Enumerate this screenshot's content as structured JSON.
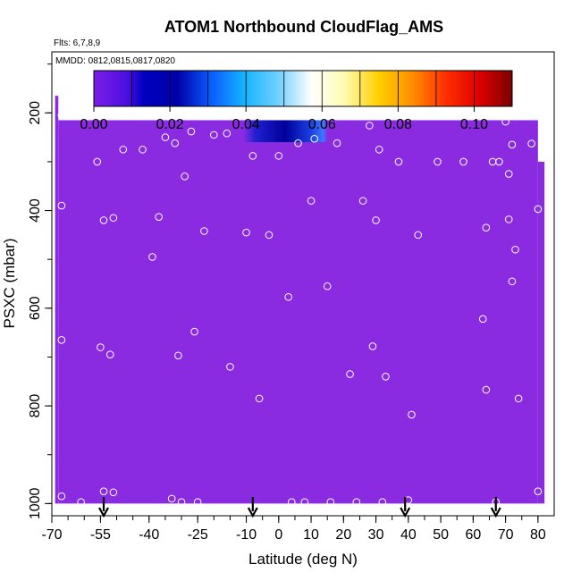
{
  "chart_data": {
    "type": "heatmap",
    "title": "ATOM1 Northbound CloudFlag_AMS",
    "annotations": {
      "flights": "Flts: 6,7,8,9",
      "dates": "MMDD: 0812,0815,0817,0820"
    },
    "xlabel": "Latitude (deg N)",
    "ylabel": "PSXC (mbar)",
    "xlim": [
      -70,
      85
    ],
    "ylim": [
      1025,
      75
    ],
    "x_ticks": [
      -70,
      -55,
      -40,
      -25,
      -10,
      0,
      10,
      20,
      30,
      40,
      50,
      60,
      70,
      80
    ],
    "x_tick_labels": [
      "-70",
      "-55",
      "-40",
      "-25",
      "-10",
      "0",
      "10",
      "20",
      "30",
      "40",
      "50",
      "60",
      "70",
      "80"
    ],
    "y_ticks": [
      200,
      400,
      600,
      800,
      1000
    ],
    "y_tick_labels": [
      "200",
      "400",
      "600",
      "800",
      "1000"
    ],
    "colorbar": {
      "range": [
        0,
        0.11
      ],
      "ticks": [
        0,
        0.02,
        0.04,
        0.06,
        0.08,
        0.1
      ],
      "tick_labels": [
        "0.00",
        "0.02",
        "0.04",
        "0.06",
        "0.08",
        "0.10"
      ],
      "colors": [
        "#8a2be2",
        "#00008b",
        "#1e90ff",
        "#ffffff",
        "#ffd700",
        "#ff8c00",
        "#ff0000",
        "#8b0000"
      ]
    },
    "field": {
      "background_value": 0.0,
      "background_color": "#8a2be2",
      "region": {
        "lat": [
          -68,
          80
        ],
        "psxc_top": 215,
        "psxc_bottom": 1000
      },
      "high_region": {
        "lat": [
          -11,
          15
        ],
        "psxc": [
          215,
          260
        ],
        "value_max": 0.02
      }
    },
    "flight_markers_lat": [
      -54,
      -8,
      39,
      67
    ],
    "sample_points": [
      [
        -67,
        205
      ],
      [
        -67,
        390
      ],
      [
        -67,
        665
      ],
      [
        -67,
        985
      ],
      [
        -61,
        997
      ],
      [
        -56,
        300
      ],
      [
        -54,
        420
      ],
      [
        -55,
        680
      ],
      [
        -54,
        975
      ],
      [
        -52,
        695
      ],
      [
        -51,
        415
      ],
      [
        -51,
        977
      ],
      [
        -48,
        275
      ],
      [
        -42,
        275
      ],
      [
        -39,
        495
      ],
      [
        -37,
        413
      ],
      [
        -35,
        250
      ],
      [
        -33,
        990
      ],
      [
        -32,
        262
      ],
      [
        -31,
        697
      ],
      [
        -30,
        997
      ],
      [
        -29,
        330
      ],
      [
        -27,
        238
      ],
      [
        -26,
        648
      ],
      [
        -25,
        997
      ],
      [
        -23,
        442
      ],
      [
        -20,
        245
      ],
      [
        -16,
        242
      ],
      [
        -15,
        720
      ],
      [
        -10,
        445
      ],
      [
        -8,
        288
      ],
      [
        -6,
        785
      ],
      [
        -3,
        450
      ],
      [
        0,
        288
      ],
      [
        3,
        577
      ],
      [
        4,
        997
      ],
      [
        6,
        262
      ],
      [
        8,
        997
      ],
      [
        10,
        380
      ],
      [
        11,
        253
      ],
      [
        15,
        555
      ],
      [
        16,
        997
      ],
      [
        18,
        262
      ],
      [
        22,
        735
      ],
      [
        24,
        997
      ],
      [
        26,
        380
      ],
      [
        28,
        226
      ],
      [
        29,
        678
      ],
      [
        30,
        420
      ],
      [
        32,
        997
      ],
      [
        31,
        275
      ],
      [
        33,
        740
      ],
      [
        37,
        300
      ],
      [
        40,
        993
      ],
      [
        41,
        818
      ],
      [
        43,
        450
      ],
      [
        49,
        300
      ],
      [
        57,
        300
      ],
      [
        63,
        622
      ],
      [
        64,
        767
      ],
      [
        64,
        435
      ],
      [
        66,
        300
      ],
      [
        67,
        997
      ],
      [
        68,
        300
      ],
      [
        70,
        218
      ],
      [
        71,
        418
      ],
      [
        71,
        325
      ],
      [
        72,
        265
      ],
      [
        72,
        545
      ],
      [
        73,
        480
      ],
      [
        74,
        785
      ],
      [
        78,
        263
      ],
      [
        80,
        397
      ],
      [
        80,
        975
      ]
    ]
  }
}
